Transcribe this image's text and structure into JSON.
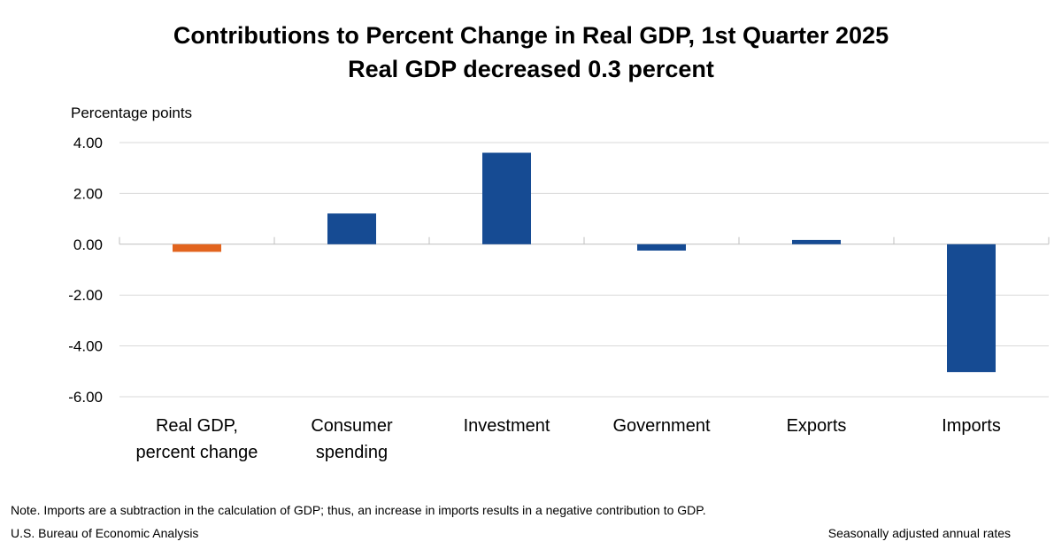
{
  "chart_data": {
    "type": "bar",
    "title": "Contributions to Percent Change in Real GDP, 1st Quarter 2025",
    "subtitle": "Real GDP decreased 0.3 percent",
    "ylabel": "Percentage points",
    "categories": [
      "Real GDP, percent change",
      "Consumer spending",
      "Investment",
      "Government",
      "Exports",
      "Imports"
    ],
    "category_lines": [
      [
        "Real GDP,",
        "percent change"
      ],
      [
        "Consumer",
        "spending"
      ],
      [
        "Investment"
      ],
      [
        "Government"
      ],
      [
        "Exports"
      ],
      [
        "Imports"
      ]
    ],
    "values": [
      -0.3,
      1.21,
      3.6,
      -0.25,
      0.17,
      -5.03
    ],
    "bar_colors": [
      "#e2641e",
      "#164b93",
      "#164b93",
      "#164b93",
      "#164b93",
      "#164b93"
    ],
    "ylim": [
      -6,
      4
    ],
    "yticks": [
      4,
      2,
      0,
      -2,
      -4,
      -6
    ],
    "ytick_labels": [
      "4.00",
      "2.00",
      "0.00",
      "-2.00",
      "-4.00",
      "-6.00"
    ],
    "grid": true,
    "legend": "none"
  },
  "footer": {
    "note": "Note. Imports are a subtraction in the calculation of GDP; thus, an increase in imports results in a negative contribution to GDP.",
    "source": "U.S. Bureau of Economic Analysis",
    "rates": "Seasonally adjusted annual rates"
  },
  "colors": {
    "gridline": "#d9d9d9",
    "axis": "#bfbfbf"
  }
}
